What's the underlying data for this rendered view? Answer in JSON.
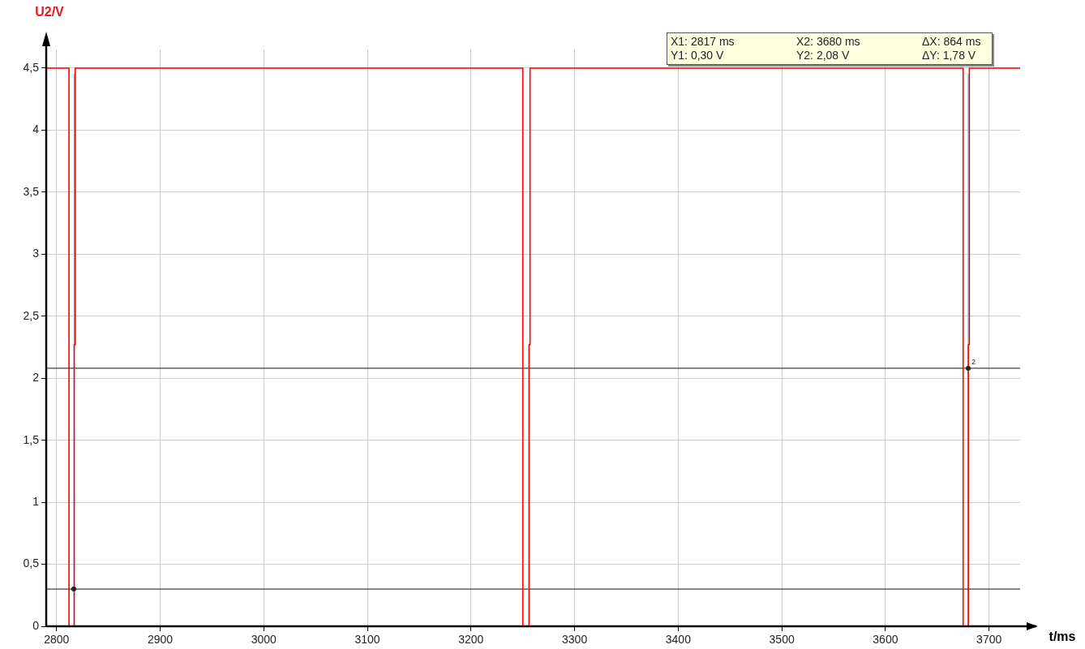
{
  "chart_data": {
    "type": "line",
    "xlabel": "t/ms",
    "ylabel": "U2/V",
    "xlim": [
      2790,
      3730
    ],
    "xticks": [
      2800,
      2900,
      3000,
      3100,
      3200,
      3300,
      3400,
      3500,
      3600,
      3700
    ],
    "ylim": [
      0,
      4.65
    ],
    "yticks": [
      0,
      {
        "value": 0.5,
        "label": "0,5"
      },
      1,
      {
        "value": 1.5,
        "label": "1,5"
      },
      2,
      {
        "value": 2.5,
        "label": "2,5"
      },
      3,
      {
        "value": 3.5,
        "label": "3,5"
      },
      4,
      {
        "value": 4.5,
        "label": "4,5"
      }
    ],
    "grid": true,
    "legend": false,
    "marker": "none",
    "line_style": "solid",
    "series": [
      {
        "color": "#ff0000",
        "x": [
          2790,
          2812,
          2812,
          2817,
          2817,
          2818,
          2818,
          3250,
          3250,
          3256,
          3256,
          3257,
          3257,
          3675,
          3675,
          3680,
          3680,
          3681,
          3681,
          3730
        ],
        "values": [
          4.5,
          4.5,
          0,
          0,
          2.27,
          2.27,
          4.5,
          4.5,
          0,
          0,
          2.27,
          2.27,
          4.5,
          4.5,
          0,
          0,
          2.27,
          2.27,
          4.5,
          4.5
        ]
      }
    ],
    "ref_lines": [
      {
        "axis": "x",
        "value": 2817,
        "color": "#00e5ee"
      },
      {
        "axis": "x",
        "value": 3680,
        "color": "#00e5ee"
      },
      {
        "axis": "y",
        "value": 0.3,
        "color": "#404040"
      },
      {
        "axis": "y",
        "value": 2.08,
        "color": "#404040"
      }
    ],
    "annotations": [
      "X1: 2817 ms",
      "X2: 3680 ms",
      "ΔX: 864 ms",
      "Y1: 0,30 V",
      "Y2: 2,08 V",
      "ΔY: 1,78 V",
      {
        "text": "2",
        "x": 3680,
        "y": 2.08
      }
    ]
  }
}
